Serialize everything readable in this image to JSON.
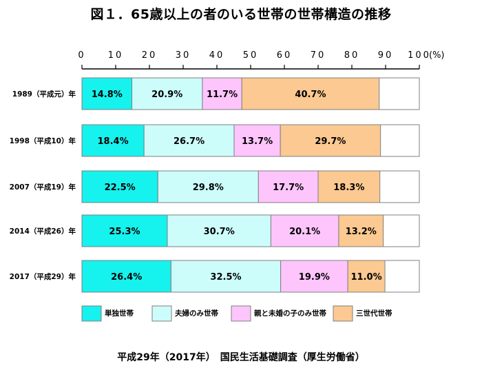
{
  "title": "図１．65歳以上の者のいる世帯の世帯構造の推移",
  "source": "平成29年（2017年）　国民生活基礎調査（厚生労働省）",
  "chart_data": {
    "type": "bar",
    "orientation": "horizontal",
    "stacked": true,
    "title": "図１．65歳以上の者のいる世帯の世帯構造の推移",
    "xlim": [
      0,
      100
    ],
    "x_ticks": [
      "0",
      "10",
      "20",
      "30",
      "40",
      "50",
      "60",
      "70",
      "80",
      "90",
      "100"
    ],
    "x_unit_label": "(%)",
    "categories": [
      "1989（平成元）年",
      "1998（平成10）年",
      "2007（平成19）年",
      "2014（平成26）年",
      "2017（平成29）年"
    ],
    "series": [
      {
        "name": "単独世帯",
        "color": "#16f2ee",
        "values": [
          14.8,
          18.4,
          22.5,
          25.3,
          26.4
        ],
        "labels": [
          "14.8%",
          "18.4%",
          "22.5%",
          "25.3%",
          "26.4%"
        ]
      },
      {
        "name": "夫婦のみ世帯",
        "color": "#ccfdfb",
        "values": [
          20.9,
          26.7,
          29.8,
          30.7,
          32.5
        ],
        "labels": [
          "20.9%",
          "26.7%",
          "29.8%",
          "30.7%",
          "32.5%"
        ]
      },
      {
        "name": "親と未婚の子のみ世帯",
        "color": "#fdc5fc",
        "values": [
          11.7,
          13.7,
          17.7,
          20.1,
          19.9
        ],
        "labels": [
          "11.7%",
          "13.7%",
          "17.7%",
          "20.1%",
          "19.9%"
        ]
      },
      {
        "name": "三世代世帯",
        "color": "#fbc991",
        "values": [
          40.7,
          29.7,
          18.3,
          13.2,
          11.0
        ],
        "labels": [
          "40.7%",
          "29.7%",
          "18.3%",
          "13.2%",
          "11.0%"
        ]
      }
    ],
    "remainder_color": "#ffffff",
    "grid": false,
    "legend_position": "bottom"
  }
}
